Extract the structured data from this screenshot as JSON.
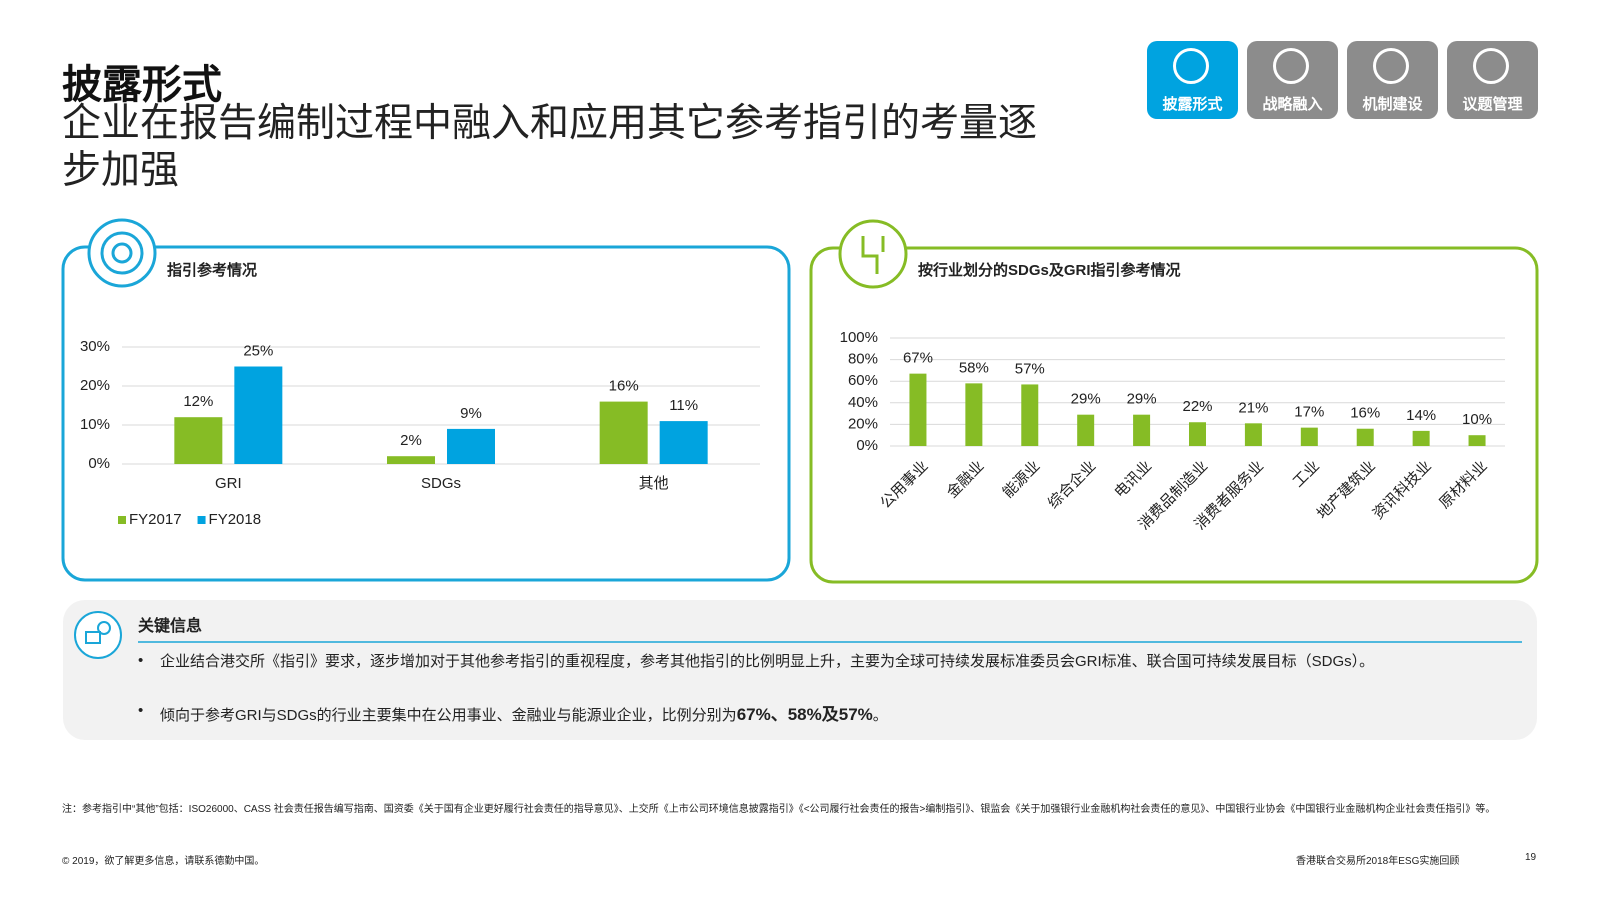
{
  "header": {
    "title": "披露形式",
    "subtitle": "企业在报告编制过程中融入和应用其它参考指引的考量逐步加强"
  },
  "nav": [
    "披露形式",
    "战略融入",
    "机制建设",
    "议题管理"
  ],
  "chart_data": [
    {
      "type": "bar",
      "title": "指引参考情况",
      "categories": [
        "GRI",
        "SDGs",
        "其他"
      ],
      "series": [
        {
          "name": "FY2017",
          "color": "#86bc25",
          "values": [
            12,
            2,
            16
          ],
          "value_labels": [
            "12%",
            "2%",
            "16%"
          ]
        },
        {
          "name": "FY2018",
          "color": "#00a3e0",
          "values": [
            25,
            9,
            11
          ],
          "value_labels": [
            "25%",
            "9%",
            "11%"
          ]
        }
      ],
      "ylim": [
        0,
        30
      ],
      "yticks": [
        {
          "value": 0,
          "label": "0%"
        },
        {
          "value": 10,
          "label": "10%"
        },
        {
          "value": 20,
          "label": "20%"
        },
        {
          "value": 30,
          "label": "30%"
        }
      ],
      "grid": true,
      "legend": "bottom-left"
    },
    {
      "type": "bar",
      "title": "按行业划分的SDGs及GRI指引参考情况",
      "categories": [
        "公用事业",
        "金融业",
        "能源业",
        "综合企业",
        "电讯业",
        "消费品制造业",
        "消费者服务业",
        "工业",
        "地产建筑业",
        "资讯科技业",
        "原材料业"
      ],
      "values": [
        67,
        58,
        57,
        29,
        29,
        22,
        21,
        17,
        16,
        14,
        10
      ],
      "value_labels": [
        "67%",
        "58%",
        "57%",
        "29%",
        "29%",
        "22%",
        "21%",
        "17%",
        "16%",
        "14%",
        "10%"
      ],
      "color": "#86bc25",
      "ylim": [
        0,
        100
      ],
      "yticks": [
        {
          "value": 0,
          "label": "0%"
        },
        {
          "value": 20,
          "label": "20%"
        },
        {
          "value": 40,
          "label": "40%"
        },
        {
          "value": 60,
          "label": "60%"
        },
        {
          "value": 80,
          "label": "80%"
        },
        {
          "value": 100,
          "label": "100%"
        }
      ],
      "grid": true
    }
  ],
  "key_info": {
    "title": "关键信息",
    "bullets": [
      {
        "text": "企业结合港交所《指引》要求，逐步增加对于其他参考指引的重视程度，参考其他指引的比例明显上升，主要为全球可持续发展标准委员会GRI标准、联合国可持续发展目标（SDGs）。"
      },
      {
        "text": "倾向于参考GRI与SDGs的行业主要集中在公用事业、金融业与能源业企业，比例分别为",
        "bold": "67%、58%及57%",
        "end": "。"
      }
    ]
  },
  "footnote": "注：参考指引中“其他”包括：ISO26000、CASS 社会责任报告编写指南、国资委《关于国有企业更好履行社会责任的指导意见》、上交所《上市公司环境信息披露指引》《<公司履行社会责任的报告>编制指引》、银监会《关于加强银行业金融机构社会责任的意见》、中国银行业协会《中国银行业金融机构企业社会责任指引》等。",
  "footer": {
    "copyright": "© 2019，欲了解更多信息，请联系德勤中国。",
    "source": "香港联合交易所2018年ESG实施回顾",
    "page": "19"
  }
}
